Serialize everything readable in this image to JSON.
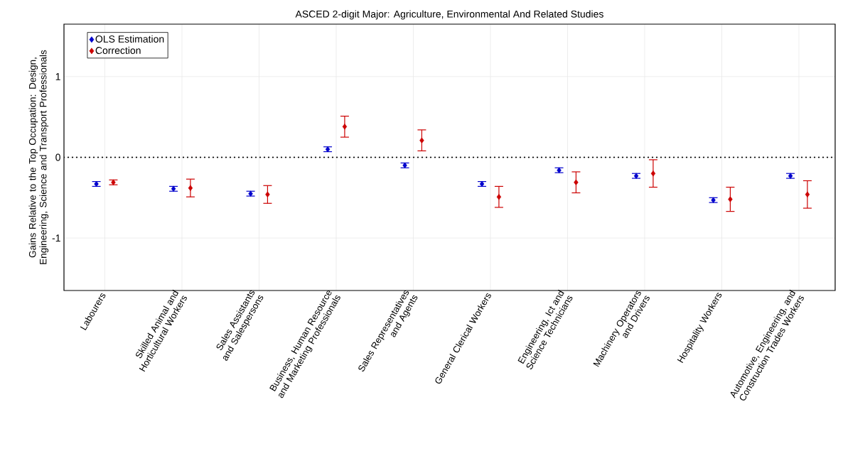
{
  "chart_data": {
    "type": "scatter",
    "title": "ASCED 2-digit Major: Agriculture, Environmental And Related Studies",
    "ylabel": "Gains Relative to the Top Occupation: Design, Engineering, Science and Transport Professionals",
    "categories": [
      "Labourers",
      "Skilled Animal and Horticultural Workers",
      "Sales Assistants and Salespersons",
      "Business, Human Resource and Marketing Professionals",
      "Sales Representatives and Agents",
      "General Clerical Workers",
      "Engineering, Ict and Science Technicians",
      "Machinery Operators and Drivers",
      "Hospitality Workers",
      "Automotive, Engineering, and Construction Trades Workers"
    ],
    "series": [
      {
        "name": "OLS Estimation",
        "color": "#0000cc",
        "values": [
          -0.33,
          -0.39,
          -0.45,
          0.1,
          -0.1,
          -0.33,
          -0.16,
          -0.23,
          -0.53,
          -0.23
        ],
        "errors": [
          0.03,
          0.03,
          0.03,
          0.03,
          0.03,
          0.03,
          0.03,
          0.03,
          0.03,
          0.03
        ]
      },
      {
        "name": "Correction",
        "color": "#cc0000",
        "values": [
          -0.31,
          -0.38,
          -0.46,
          0.38,
          0.21,
          -0.49,
          -0.31,
          -0.2,
          -0.52,
          -0.46
        ],
        "errors": [
          0.03,
          0.11,
          0.11,
          0.13,
          0.13,
          0.13,
          0.13,
          0.17,
          0.15,
          0.17
        ]
      }
    ],
    "ylim": [
      -1.65,
      1.65
    ],
    "yticks": [
      -1,
      0,
      1
    ],
    "ref_lines": [
      {
        "axis": "y",
        "value": 0,
        "color": "#000000",
        "line_style": "dotted"
      }
    ],
    "grid": true,
    "legend": "top left",
    "marker": "diamond"
  }
}
